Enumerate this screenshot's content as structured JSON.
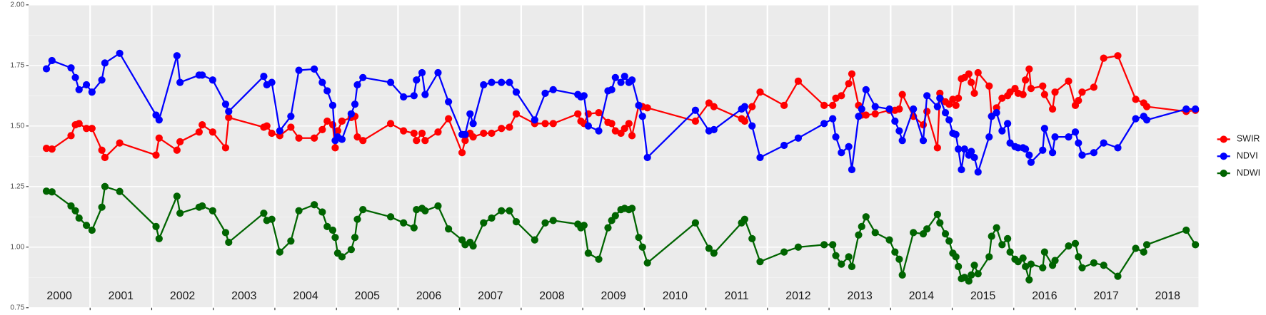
{
  "chart_data": {
    "type": "line",
    "x": [
      2000.29,
      2000.38,
      2000.69,
      2000.76,
      2000.82,
      2000.94,
      2001.03,
      2001.19,
      2001.24,
      2001.48,
      2002.07,
      2002.12,
      2002.41,
      2002.46,
      2002.77,
      2002.82,
      2002.99,
      2003.2,
      2003.25,
      2003.82,
      2003.87,
      2003.95,
      2004.08,
      2004.26,
      2004.39,
      2004.64,
      2004.77,
      2004.85,
      2004.94,
      2004.98,
      2005.02,
      2005.09,
      2005.24,
      2005.3,
      2005.34,
      2005.43,
      2005.88,
      2006.09,
      2006.26,
      2006.3,
      2006.39,
      2006.44,
      2006.65,
      2006.82,
      2007.04,
      2007.09,
      2007.17,
      2007.22,
      2007.39,
      2007.52,
      2007.68,
      2007.81,
      2007.92,
      2008.22,
      2008.39,
      2008.52,
      2008.92,
      2008.97,
      2009.02,
      2009.09,
      2009.26,
      2009.41,
      2009.47,
      2009.53,
      2009.62,
      2009.68,
      2009.75,
      2009.8,
      2009.91,
      2009.97,
      2010.05,
      2010.83,
      2011.05,
      2011.13,
      2011.58,
      2011.63,
      2011.75,
      2011.88,
      2012.27,
      2012.5,
      2012.92,
      2013.06,
      2013.11,
      2013.2,
      2013.32,
      2013.37,
      2013.48,
      2013.53,
      2013.6,
      2013.75,
      2013.98,
      2014.07,
      2014.14,
      2014.19,
      2014.37,
      2014.53,
      2014.59,
      2014.76,
      2014.8,
      2014.89,
      2014.95,
      2015.01,
      2015.06,
      2015.1,
      2015.15,
      2015.2,
      2015.27,
      2015.31,
      2015.36,
      2015.42,
      2015.6,
      2015.64,
      2015.72,
      2015.81,
      2015.9,
      2015.94,
      2016.02,
      2016.07,
      2016.15,
      2016.19,
      2016.25,
      2016.28,
      2016.47,
      2016.5,
      2016.63,
      2016.67,
      2016.89,
      2017.0,
      2017.05,
      2017.11,
      2017.3,
      2017.46,
      2017.69,
      2017.98,
      2018.11,
      2018.16,
      2018.8,
      2018.95
    ],
    "series": [
      {
        "name": "SWIR",
        "color": "#ff0000",
        "values": [
          1.408,
          1.405,
          1.46,
          1.505,
          1.51,
          1.49,
          1.49,
          1.4,
          1.37,
          1.43,
          1.38,
          1.45,
          1.4,
          1.435,
          1.475,
          1.505,
          1.475,
          1.41,
          1.535,
          1.495,
          1.5,
          1.47,
          1.46,
          1.495,
          1.45,
          1.45,
          1.485,
          1.52,
          1.505,
          1.41,
          1.48,
          1.52,
          1.535,
          1.54,
          1.455,
          1.44,
          1.51,
          1.48,
          1.47,
          1.44,
          1.47,
          1.44,
          1.475,
          1.53,
          1.39,
          1.44,
          1.47,
          1.455,
          1.47,
          1.47,
          1.49,
          1.495,
          1.55,
          1.51,
          1.51,
          1.51,
          1.55,
          1.52,
          1.51,
          1.55,
          1.555,
          1.515,
          1.51,
          1.48,
          1.47,
          1.49,
          1.51,
          1.46,
          1.585,
          1.58,
          1.575,
          1.52,
          1.595,
          1.58,
          1.53,
          1.52,
          1.58,
          1.64,
          1.585,
          1.685,
          1.585,
          1.585,
          1.615,
          1.625,
          1.675,
          1.715,
          1.585,
          1.545,
          1.545,
          1.55,
          1.565,
          1.565,
          1.57,
          1.63,
          1.54,
          1.505,
          1.56,
          1.41,
          1.635,
          1.6,
          1.59,
          1.61,
          1.585,
          1.615,
          1.695,
          1.7,
          1.715,
          1.68,
          1.635,
          1.72,
          1.665,
          1.54,
          1.575,
          1.615,
          1.625,
          1.64,
          1.655,
          1.635,
          1.63,
          1.69,
          1.735,
          1.655,
          1.665,
          1.63,
          1.57,
          1.64,
          1.685,
          1.585,
          1.605,
          1.64,
          1.66,
          1.78,
          1.79,
          1.61,
          1.595,
          1.58,
          1.56,
          1.565
        ]
      },
      {
        "name": "NDVI",
        "color": "#0000ff",
        "values": [
          1.736,
          1.77,
          1.74,
          1.7,
          1.65,
          1.67,
          1.64,
          1.69,
          1.76,
          1.8,
          1.545,
          1.525,
          1.79,
          1.68,
          1.71,
          1.71,
          1.69,
          1.59,
          1.56,
          1.705,
          1.67,
          1.68,
          1.48,
          1.54,
          1.73,
          1.735,
          1.68,
          1.645,
          1.585,
          1.44,
          1.455,
          1.445,
          1.55,
          1.59,
          1.67,
          1.7,
          1.68,
          1.62,
          1.625,
          1.69,
          1.72,
          1.63,
          1.72,
          1.6,
          1.465,
          1.465,
          1.55,
          1.51,
          1.67,
          1.68,
          1.68,
          1.68,
          1.64,
          1.525,
          1.635,
          1.65,
          1.63,
          1.62,
          1.625,
          1.5,
          1.48,
          1.645,
          1.65,
          1.7,
          1.68,
          1.705,
          1.68,
          1.69,
          1.585,
          1.54,
          1.37,
          1.565,
          1.48,
          1.485,
          1.57,
          1.58,
          1.5,
          1.37,
          1.42,
          1.45,
          1.51,
          1.53,
          1.455,
          1.39,
          1.415,
          1.32,
          1.54,
          1.57,
          1.65,
          1.58,
          1.57,
          1.52,
          1.48,
          1.44,
          1.57,
          1.44,
          1.625,
          1.58,
          1.615,
          1.555,
          1.525,
          1.47,
          1.465,
          1.405,
          1.32,
          1.405,
          1.38,
          1.395,
          1.37,
          1.31,
          1.455,
          1.54,
          1.555,
          1.48,
          1.51,
          1.43,
          1.415,
          1.41,
          1.41,
          1.405,
          1.38,
          1.35,
          1.4,
          1.49,
          1.39,
          1.455,
          1.455,
          1.475,
          1.43,
          1.38,
          1.39,
          1.43,
          1.41,
          1.53,
          1.54,
          1.525,
          1.57,
          1.57
        ]
      },
      {
        "name": "NDWI",
        "color": "#006400",
        "values": [
          1.231,
          1.228,
          1.17,
          1.15,
          1.12,
          1.09,
          1.07,
          1.165,
          1.25,
          1.23,
          1.085,
          1.035,
          1.21,
          1.14,
          1.165,
          1.17,
          1.15,
          1.06,
          1.02,
          1.14,
          1.11,
          1.115,
          0.98,
          1.025,
          1.15,
          1.175,
          1.145,
          1.085,
          1.07,
          1.04,
          0.975,
          0.96,
          0.99,
          1.04,
          1.115,
          1.155,
          1.125,
          1.1,
          1.08,
          1.155,
          1.16,
          1.15,
          1.17,
          1.075,
          1.03,
          1.01,
          1.02,
          1.005,
          1.1,
          1.12,
          1.15,
          1.15,
          1.105,
          1.03,
          1.1,
          1.11,
          1.095,
          1.08,
          1.09,
          0.975,
          0.95,
          1.08,
          1.11,
          1.13,
          1.155,
          1.16,
          1.155,
          1.16,
          1.04,
          1.0,
          0.935,
          1.1,
          0.995,
          0.975,
          1.1,
          1.115,
          1.035,
          0.94,
          0.98,
          1.0,
          1.01,
          1.01,
          0.965,
          0.93,
          0.96,
          0.92,
          1.05,
          1.085,
          1.125,
          1.06,
          1.03,
          0.98,
          0.95,
          0.885,
          1.06,
          1.055,
          1.075,
          1.135,
          1.1,
          1.055,
          1.025,
          0.975,
          0.96,
          0.92,
          0.87,
          0.875,
          0.86,
          0.885,
          0.925,
          0.89,
          0.96,
          1.045,
          1.08,
          1.01,
          1.035,
          0.98,
          0.95,
          0.94,
          0.955,
          0.92,
          0.865,
          0.93,
          0.915,
          0.98,
          0.925,
          0.945,
          1.005,
          1.015,
          0.96,
          0.915,
          0.935,
          0.925,
          0.88,
          0.995,
          0.98,
          1.01,
          1.07,
          1.01
        ]
      }
    ],
    "xlim": [
      2000,
      2019
    ],
    "xticks": [
      {
        "value": 2000.5,
        "label": "2000"
      },
      {
        "value": 2001.5,
        "label": "2001"
      },
      {
        "value": 2002.5,
        "label": "2002"
      },
      {
        "value": 2003.5,
        "label": "2003"
      },
      {
        "value": 2004.5,
        "label": "2004"
      },
      {
        "value": 2005.5,
        "label": "2005"
      },
      {
        "value": 2006.5,
        "label": "2006"
      },
      {
        "value": 2007.5,
        "label": "2007"
      },
      {
        "value": 2008.5,
        "label": "2008"
      },
      {
        "value": 2009.5,
        "label": "2009"
      },
      {
        "value": 2010.5,
        "label": "2010"
      },
      {
        "value": 2011.5,
        "label": "2011"
      },
      {
        "value": 2012.5,
        "label": "2012"
      },
      {
        "value": 2013.5,
        "label": "2013"
      },
      {
        "value": 2014.5,
        "label": "2014"
      },
      {
        "value": 2015.5,
        "label": "2015"
      },
      {
        "value": 2016.5,
        "label": "2016"
      },
      {
        "value": 2017.5,
        "label": "2017"
      },
      {
        "value": 2018.5,
        "label": "2018"
      }
    ],
    "ylim": [
      0.75,
      2
    ],
    "yticks": [
      0.75,
      {
        "value": 1,
        "label": "1.00"
      },
      1.25,
      {
        "value": 1.5,
        "label": "1.50"
      },
      1.75,
      {
        "value": 2,
        "label": "2.00"
      }
    ],
    "grid": true,
    "legend": "right"
  }
}
